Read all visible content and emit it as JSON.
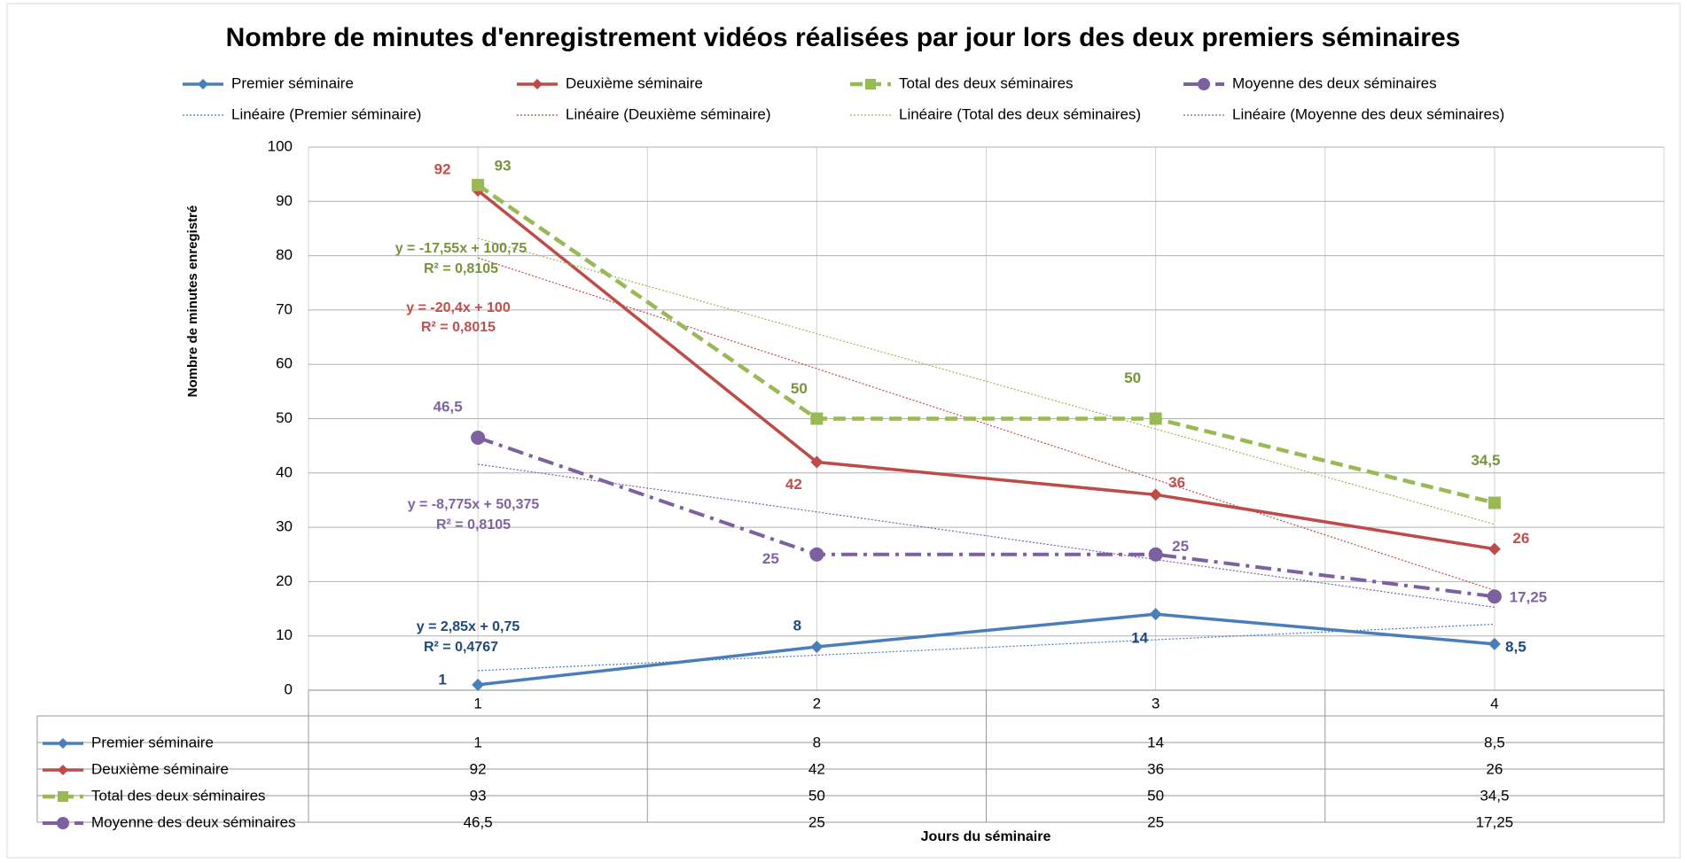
{
  "chart_data": {
    "type": "line",
    "title": "Nombre de minutes d'enregistrement vidéos réalisées par jour lors des deux premiers séminaires",
    "xlabel": "Jours du séminaire",
    "ylabel": "Nombre de minutes enregistré",
    "categories": [
      "1",
      "2",
      "3",
      "4"
    ],
    "ylim": [
      0,
      100
    ],
    "yticks": [
      0,
      10,
      20,
      30,
      40,
      50,
      60,
      70,
      80,
      90,
      100
    ],
    "grid": true,
    "legend": "top",
    "series": [
      {
        "name": "Premier séminaire",
        "color": "#4a7ebb",
        "label_color": "#1f497d",
        "marker": "diamond",
        "dash": "solid",
        "values": [
          1,
          8,
          14,
          8.5
        ],
        "value_labels": [
          "1",
          "8",
          "14",
          "8,5"
        ],
        "trendline": {
          "name": "Linéaire (Premier séminaire)",
          "equation": "y = 2,85x + 0,75",
          "r2": "R² = 0,4767"
        }
      },
      {
        "name": "Deuxième séminaire",
        "color": "#be4b48",
        "label_color": "#c0504d",
        "marker": "diamond",
        "dash": "solid",
        "values": [
          92,
          42,
          36,
          26
        ],
        "trendline": {
          "name": "Linéaire (Deuxième séminaire)",
          "equation": "y = -20,4x + 100",
          "r2": "R² = 0,8015"
        }
      },
      {
        "name": "Total des deux séminaires",
        "color": "#98b954",
        "label_color": "#77933c",
        "marker": "square",
        "dash": "dashed",
        "values": [
          93,
          50,
          50,
          34.5
        ],
        "value_labels": [
          "93",
          "50",
          "50",
          "34,5"
        ],
        "trendline": {
          "name": "Linéaire (Total des deux séminaires)",
          "equation": "y = -17,55x + 100,75",
          "r2": "R² = 0,8105"
        }
      },
      {
        "name": "Moyenne des deux séminaires",
        "color": "#7d60a0",
        "label_color": "#8064a2",
        "marker": "circle",
        "dash": "dashdot",
        "values": [
          46.5,
          25,
          25,
          17.25
        ],
        "value_labels": [
          "46,5",
          "25",
          "25",
          "17,25"
        ],
        "trendline": {
          "name": "Linéaire (Moyenne des deux séminaires)",
          "equation": "y = -8,775x + 50,375",
          "r2": "R² = 0,8105"
        }
      }
    ]
  }
}
